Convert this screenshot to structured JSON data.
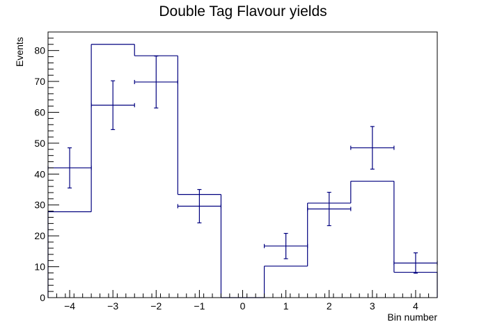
{
  "chart_data": {
    "type": "bar",
    "title": "Double Tag Flavour yields",
    "xlabel": "Bin number",
    "ylabel": "Events",
    "xlim": [
      -4.5,
      4.5
    ],
    "ylim": [
      0,
      86
    ],
    "grid": false,
    "legend": "none",
    "x_ticks": [
      -4,
      -3,
      -2,
      -1,
      0,
      1,
      2,
      3,
      4
    ],
    "x_tick_labels": [
      "−4",
      "−3",
      "−2",
      "−1",
      "0",
      "1",
      "2",
      "3",
      "4"
    ],
    "y_ticks": [
      0,
      10,
      20,
      30,
      40,
      50,
      60,
      70,
      80
    ],
    "y_tick_labels": [
      "0",
      "10",
      "20",
      "30",
      "40",
      "50",
      "60",
      "70",
      "80"
    ],
    "histogram": {
      "bin_edges": [
        -4.5,
        -3.5,
        -2.5,
        -1.5,
        -0.5,
        0.5,
        1.5,
        2.5,
        3.5,
        4.5
      ],
      "bin_centers": [
        -4,
        -3,
        -2,
        -1,
        0,
        1,
        2,
        3,
        4
      ],
      "values": [
        27.8,
        82.0,
        78.3,
        33.4,
        0,
        10.2,
        30.6,
        37.7,
        8.2
      ],
      "color": "#00007f"
    },
    "points": {
      "x": [
        -4,
        -3,
        -2,
        -1,
        1,
        2,
        3,
        4
      ],
      "y": [
        42.0,
        62.3,
        69.8,
        29.6,
        16.7,
        28.7,
        48.5,
        11.2
      ],
      "y_err": [
        6.5,
        7.9,
        8.4,
        5.4,
        4.1,
        5.4,
        6.9,
        3.3
      ],
      "x_err": 0.5,
      "color": "#00007f"
    }
  }
}
